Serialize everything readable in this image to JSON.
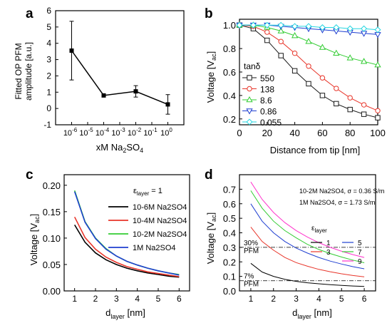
{
  "chart_data": [
    {
      "panel": "a",
      "type": "scatter",
      "xlabel": "xM Na2SO4",
      "ylabel_lines": [
        "Fitted OP PFM",
        "amplitude [a.u.]"
      ],
      "xscale": "log",
      "xlim": [
        1e-07,
        10
      ],
      "ylim": [
        -1,
        6
      ],
      "xticks": [
        {
          "v": 1e-06,
          "m": "10",
          "e": "-6"
        },
        {
          "v": 1e-05,
          "m": "10",
          "e": "-5"
        },
        {
          "v": 0.0001,
          "m": "10",
          "e": "-4"
        },
        {
          "v": 0.001,
          "m": "10",
          "e": "-3"
        },
        {
          "v": 0.01,
          "m": "10",
          "e": "-2"
        },
        {
          "v": 0.1,
          "m": "10",
          "e": "-1"
        },
        {
          "v": 1,
          "m": "10",
          "e": "0"
        }
      ],
      "yticks": [
        -1,
        0,
        1,
        2,
        3,
        4,
        5,
        6
      ],
      "points": [
        {
          "x": 1e-06,
          "y": 3.55,
          "err": 1.8
        },
        {
          "x": 0.0001,
          "y": 0.8,
          "err": 0.05
        },
        {
          "x": 0.01,
          "y": 1.05,
          "err": 0.35
        },
        {
          "x": 1,
          "y": 0.25,
          "err": 0.6
        }
      ]
    },
    {
      "panel": "b",
      "type": "line",
      "xlabel": "Distance from tip [nm]",
      "ylabel": "Voltage [Vac]",
      "xlim": [
        0,
        100
      ],
      "ylim": [
        0.15,
        1.05
      ],
      "xticks": [
        0,
        20,
        40,
        60,
        80,
        100
      ],
      "yticks": [
        0.2,
        0.4,
        0.6,
        0.8,
        1.0
      ],
      "legend_title": "tanδ",
      "series": [
        {
          "name": "550",
          "color": "#1a1a1a",
          "marker": "square",
          "x": [
            0,
            10,
            20,
            30,
            40,
            50,
            60,
            70,
            80,
            90,
            100
          ],
          "y": [
            1.0,
            0.97,
            0.87,
            0.74,
            0.61,
            0.5,
            0.4,
            0.33,
            0.28,
            0.24,
            0.21
          ]
        },
        {
          "name": "138",
          "color": "#e8352a",
          "marker": "circle",
          "x": [
            0,
            10,
            20,
            30,
            40,
            50,
            60,
            70,
            80,
            90,
            100
          ],
          "y": [
            1.0,
            0.99,
            0.94,
            0.86,
            0.76,
            0.65,
            0.55,
            0.46,
            0.38,
            0.32,
            0.27
          ]
        },
        {
          "name": "8.6",
          "color": "#33cc33",
          "marker": "triangle-up",
          "x": [
            0,
            10,
            20,
            30,
            40,
            50,
            60,
            70,
            80,
            90,
            100
          ],
          "y": [
            1.0,
            1.0,
            0.98,
            0.95,
            0.91,
            0.86,
            0.81,
            0.76,
            0.72,
            0.69,
            0.66
          ]
        },
        {
          "name": "0.86",
          "color": "#1f3fd1",
          "marker": "triangle-down",
          "x": [
            0,
            10,
            20,
            30,
            40,
            50,
            60,
            70,
            80,
            90,
            100
          ],
          "y": [
            1.0,
            1.0,
            1.0,
            0.99,
            0.98,
            0.97,
            0.96,
            0.95,
            0.94,
            0.93,
            0.92
          ]
        },
        {
          "name": "0.055",
          "color": "#25d6e0",
          "marker": "diamond",
          "x": [
            0,
            10,
            20,
            30,
            40,
            50,
            60,
            70,
            80,
            90,
            100
          ],
          "y": [
            1.0,
            1.0,
            1.0,
            1.0,
            0.99,
            0.99,
            0.98,
            0.98,
            0.97,
            0.97,
            0.96
          ]
        }
      ]
    },
    {
      "panel": "c",
      "type": "line",
      "xlabel": "dlayer [nm]",
      "ylabel": "Voltage [Vac]",
      "xlim": [
        0.5,
        6.5
      ],
      "ylim": [
        0,
        0.22
      ],
      "xticks": [
        1,
        2,
        3,
        4,
        5,
        6
      ],
      "yticks": [
        0.0,
        0.05,
        0.1,
        0.15,
        0.2
      ],
      "legend_title": "εlayer = 1",
      "series": [
        {
          "name": "10-6M Na2SO4",
          "color": "#000000",
          "x": [
            1,
            1.5,
            2,
            2.5,
            3,
            3.5,
            4,
            4.5,
            5,
            5.5,
            6
          ],
          "y": [
            0.125,
            0.092,
            0.072,
            0.059,
            0.05,
            0.043,
            0.038,
            0.034,
            0.031,
            0.028,
            0.026
          ]
        },
        {
          "name": "10-4M Na2SO4",
          "color": "#e8352a",
          "x": [
            1,
            1.5,
            2,
            2.5,
            3,
            3.5,
            4,
            4.5,
            5,
            5.5,
            6
          ],
          "y": [
            0.14,
            0.101,
            0.079,
            0.064,
            0.054,
            0.046,
            0.041,
            0.036,
            0.033,
            0.03,
            0.027
          ]
        },
        {
          "name": "10-2M Na2SO4",
          "color": "#33cc33",
          "x": [
            1,
            1.5,
            2,
            2.5,
            3,
            3.5,
            4,
            4.5,
            5,
            5.5,
            6
          ],
          "y": [
            0.19,
            0.131,
            0.1,
            0.08,
            0.066,
            0.056,
            0.049,
            0.043,
            0.038,
            0.034,
            0.031
          ]
        },
        {
          "name": "1M Na2SO4",
          "color": "#1f3fd1",
          "x": [
            1,
            1.5,
            2,
            2.5,
            3,
            3.5,
            4,
            4.5,
            5,
            5.5,
            6
          ],
          "y": [
            0.188,
            0.13,
            0.099,
            0.079,
            0.066,
            0.056,
            0.049,
            0.043,
            0.038,
            0.034,
            0.03
          ]
        }
      ]
    },
    {
      "panel": "d",
      "type": "line",
      "xlabel": "dlayer [nm]",
      "ylabel": "Voltage [Vac]",
      "xlim": [
        0.5,
        6.5
      ],
      "ylim": [
        0,
        0.8
      ],
      "xticks": [
        1,
        2,
        3,
        4,
        5,
        6
      ],
      "yticks": [
        0.0,
        0.1,
        0.2,
        0.3,
        0.4,
        0.5,
        0.6,
        0.7
      ],
      "annotation_lines": [
        "10-2M Na2SO4, σ = 0.36 S/m",
        "1M Na2SO4, σ = 1.73 S/m"
      ],
      "legend_title": "εlayer",
      "series": [
        {
          "name": "1",
          "color": "#000000",
          "x": [
            1,
            1.5,
            2,
            2.5,
            3,
            3.5,
            4,
            4.5,
            5,
            5.5,
            6
          ],
          "y": [
            0.19,
            0.13,
            0.1,
            0.08,
            0.066,
            0.056,
            0.049,
            0.043,
            0.038,
            0.034,
            0.031
          ]
        },
        {
          "name": "3",
          "color": "#e8352a",
          "x": [
            1,
            1.5,
            2,
            2.5,
            3,
            3.5,
            4,
            4.5,
            5,
            5.5,
            6
          ],
          "y": [
            0.44,
            0.34,
            0.28,
            0.23,
            0.195,
            0.17,
            0.148,
            0.132,
            0.118,
            0.106,
            0.097
          ]
        },
        {
          "name": "5",
          "color": "#1f3fd1",
          "x": [
            1,
            1.5,
            2,
            2.5,
            3,
            3.5,
            4,
            4.5,
            5,
            5.5,
            6
          ],
          "y": [
            0.6,
            0.48,
            0.4,
            0.34,
            0.295,
            0.26,
            0.23,
            0.205,
            0.185,
            0.167,
            0.152
          ]
        },
        {
          "name": "7",
          "color": "#33cc33",
          "x": [
            1,
            1.5,
            2,
            2.5,
            3,
            3.5,
            4,
            4.5,
            5,
            5.5,
            6
          ],
          "y": [
            0.69,
            0.57,
            0.48,
            0.415,
            0.365,
            0.32,
            0.285,
            0.257,
            0.233,
            0.212,
            0.194
          ]
        },
        {
          "name": "9",
          "color": "#ff33cc",
          "x": [
            1,
            1.5,
            2,
            2.5,
            3,
            3.5,
            4,
            4.5,
            5,
            5.5,
            6
          ],
          "y": [
            0.75,
            0.63,
            0.54,
            0.47,
            0.415,
            0.37,
            0.332,
            0.3,
            0.273,
            0.25,
            0.23
          ]
        }
      ],
      "reference_lines": [
        {
          "label_lines": [
            "30%",
            "PFM"
          ],
          "y": 0.3
        },
        {
          "label_lines": [
            "7%",
            "PFM"
          ],
          "y": 0.07
        }
      ]
    }
  ],
  "panel_labels": [
    "a",
    "b",
    "c",
    "d"
  ],
  "text": {
    "a_x_pre": "xM Na",
    "a_x_sub": "2",
    "a_x_mid": "SO",
    "a_x_sub2": "4",
    "a_y1": "Fitted OP PFM",
    "a_y2": "amplitude [a.u.]",
    "b_x": "Distance from tip [nm]",
    "b_y_pre": "Voltage [V",
    "b_y_sub": "ac",
    "b_y_post": "]",
    "b_leg_title": "tanδ",
    "c_y_pre": "Voltage [V",
    "c_y_sub": "ac",
    "c_y_post": "]",
    "c_x_pre": "d",
    "c_x_sub": "layer",
    "c_x_post": " [nm]",
    "c_leg_eps": "ε",
    "c_leg_eps_sub": "layer",
    "c_leg_eq": " = 1",
    "d_y_pre": "Voltage [V",
    "d_y_sub": "ac",
    "d_y_post": "]",
    "d_x_pre": "d",
    "d_x_sub": "layer",
    "d_x_post": " [nm]",
    "d_leg_eps": "ε",
    "d_leg_eps_sub": "layer"
  }
}
